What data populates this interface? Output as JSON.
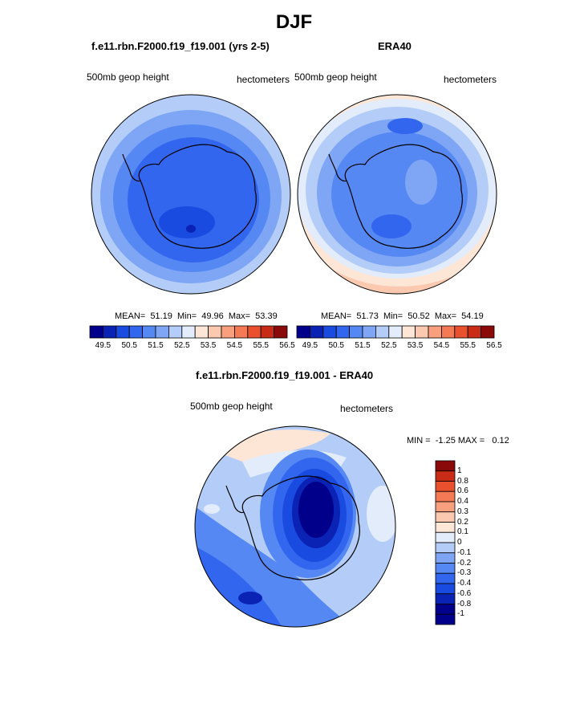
{
  "title": "DJF",
  "panels": {
    "model": {
      "title": "f.e11.rbn.F2000.f19_f19.001 (yrs 2-5)",
      "left_label": "500mb geop height",
      "right_label": "hectometers",
      "stats": "MEAN=  51.19  Min=  49.96  Max=  53.39",
      "colorbar_ticks": [
        "49.5",
        "50.5",
        "51.5",
        "52.5",
        "53.5",
        "54.5",
        "55.5",
        "56.5"
      ]
    },
    "obs": {
      "title": "ERA40",
      "left_label": "500mb geop height",
      "right_label": "hectometers",
      "stats": "MEAN=  51.73  Min=  50.52  Max=  54.19",
      "colorbar_ticks": [
        "49.5",
        "50.5",
        "51.5",
        "52.5",
        "53.5",
        "54.5",
        "55.5",
        "56.5"
      ]
    },
    "diff": {
      "title": "f.e11.rbn.F2000.f19_f19.001 - ERA40",
      "left_label": "500mb geop height",
      "right_label": "hectometers",
      "stats": "MIN =  -1.25 MAX =   0.12",
      "colorbar_labels": [
        "1",
        "0.8",
        "0.6",
        "0.4",
        "0.3",
        "0.2",
        "0.1",
        "0",
        "-0.1",
        "-0.2",
        "-0.3",
        "-0.4",
        "-0.6",
        "-0.8",
        "-1"
      ]
    }
  },
  "colors": {
    "height_scale": [
      "#00008a",
      "#0a23b4",
      "#1a4be0",
      "#3366ee",
      "#5588f2",
      "#7ea6f5",
      "#b4cdf8",
      "#e2ecfa",
      "#fde6d6",
      "#fac9b0",
      "#f8a07e",
      "#f37a55",
      "#e8502e",
      "#c82b16",
      "#8a0a0a"
    ],
    "diff_scale": [
      "#8a0a0a",
      "#c82b16",
      "#e8502e",
      "#f37a55",
      "#f8a07e",
      "#fac9b0",
      "#fde6d6",
      "#e2ecfa",
      "#b4cdf8",
      "#7ea6f5",
      "#5588f2",
      "#3366ee",
      "#1a4be0",
      "#0a23b4",
      "#00008a"
    ]
  }
}
